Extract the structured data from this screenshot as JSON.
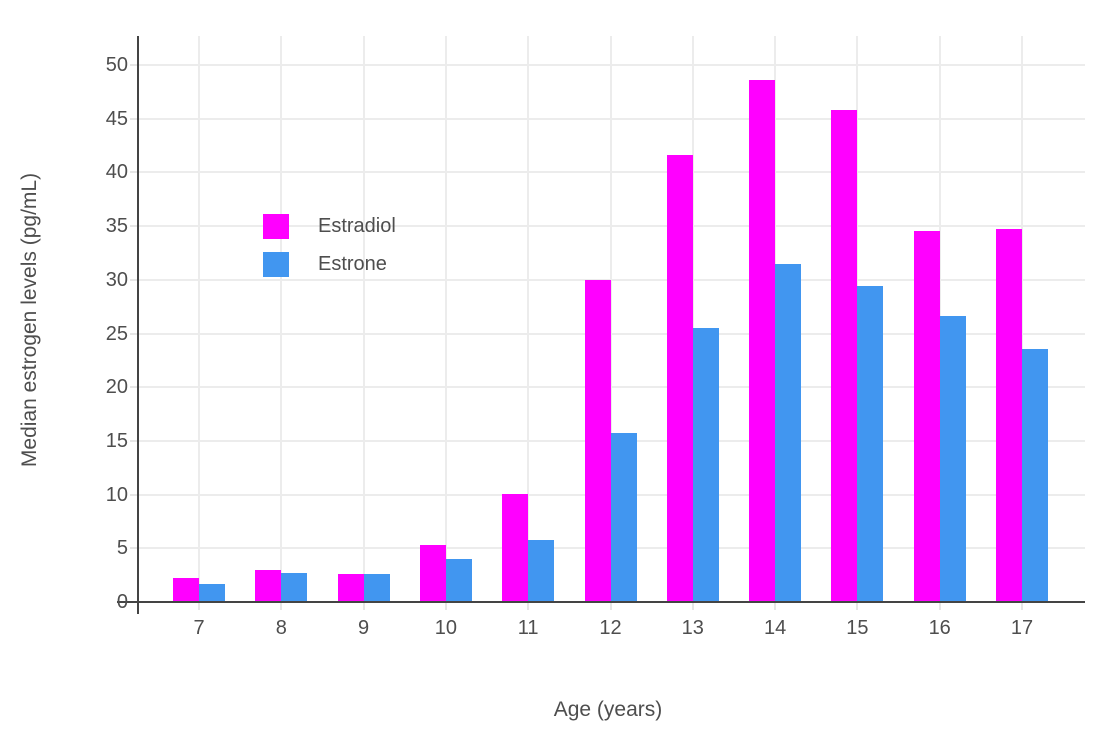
{
  "chart_data": {
    "type": "bar",
    "title": "",
    "xlabel": "Age (years)",
    "ylabel": "Median estrogen levels (pg/mL)",
    "categories": [
      "7",
      "8",
      "9",
      "10",
      "11",
      "12",
      "13",
      "14",
      "15",
      "16",
      "17"
    ],
    "series": [
      {
        "name": "Estradiol",
        "color": "#FF00FF",
        "values": [
          2.2,
          3.0,
          2.6,
          5.3,
          10.1,
          30.0,
          41.6,
          48.6,
          45.8,
          34.5,
          34.7
        ]
      },
      {
        "name": "Estrone",
        "color": "#4196F0",
        "values": [
          1.7,
          2.7,
          2.6,
          4.0,
          5.8,
          15.7,
          25.5,
          31.5,
          29.4,
          26.6,
          23.6
        ]
      }
    ],
    "ylim": [
      0,
      52.5
    ],
    "yticks": [
      0,
      5,
      10,
      15,
      20,
      25,
      30,
      35,
      40,
      45,
      50
    ],
    "grid": true,
    "legend_position": "inside-top-left",
    "axis_color": "#444444",
    "gridline_color": "#ececec",
    "label_color": "#4e4e4e",
    "background_color": "#ffffff"
  }
}
